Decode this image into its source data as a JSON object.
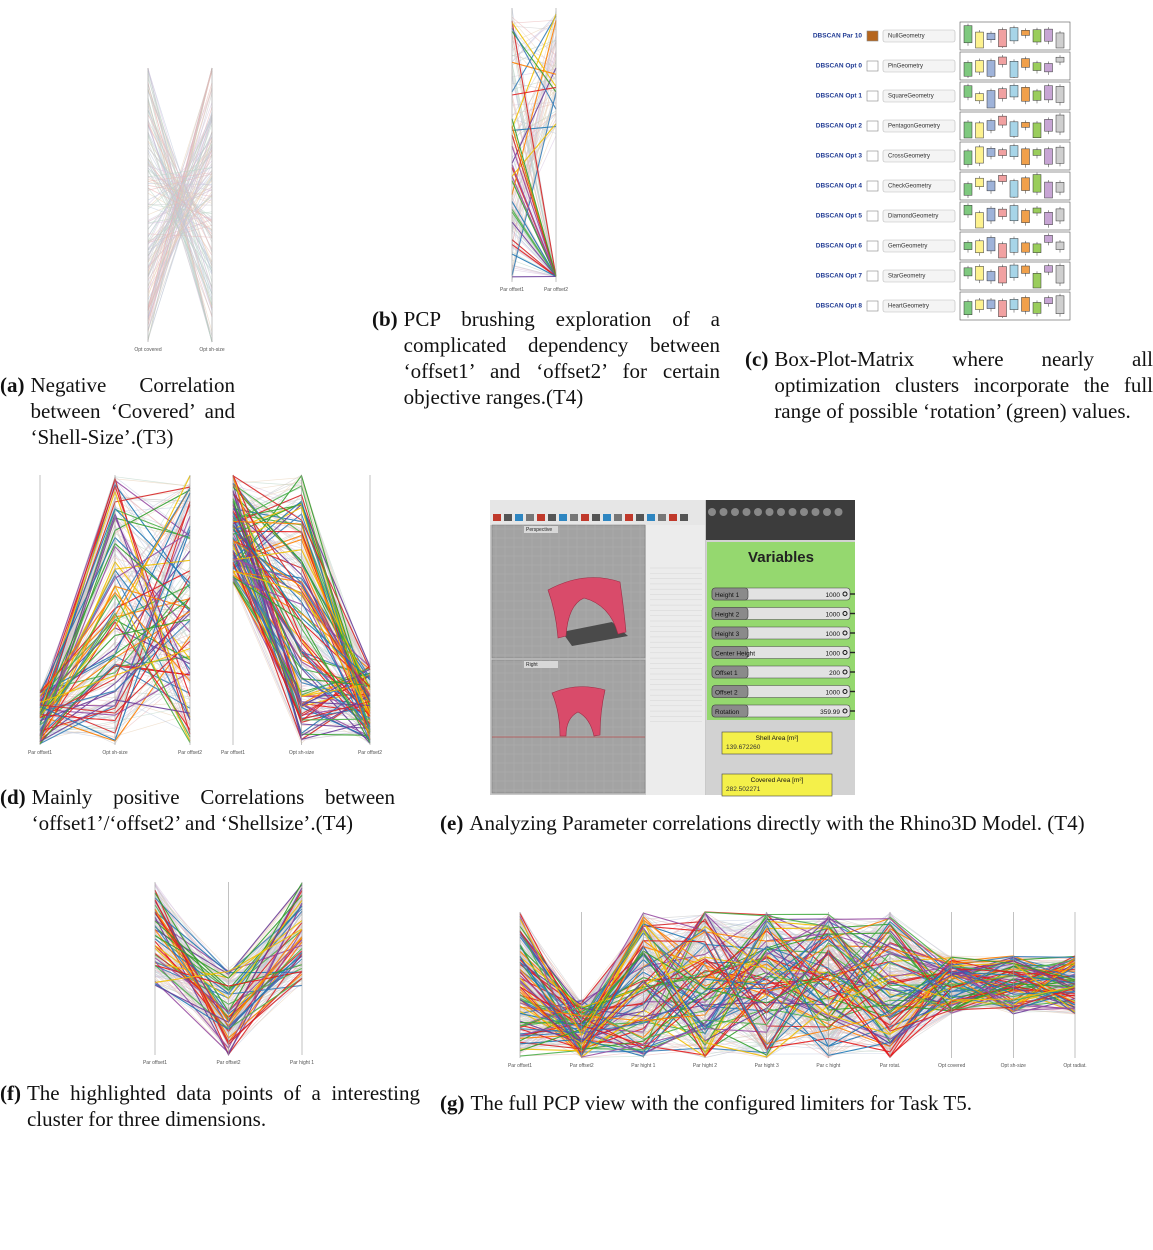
{
  "figures": [
    {
      "label": "(a)",
      "caption": "Negative Correlation between ‘Covered’ and ‘Shell-Size’.(T3)",
      "axes": [
        "Opt covered",
        "Opt sh-size"
      ]
    },
    {
      "label": "(b)",
      "caption": "PCP brushing exploration of a complicated dependency between ‘offset1’ and ‘offset2’ for certain objective ranges.(T4)",
      "axes": [
        "Par offset1",
        "Par offset2"
      ]
    },
    {
      "label": "(c)",
      "caption": "Box-Plot-Matrix where nearly all optimization clusters incorporate the full range of possible ‘rotation’ (green) values.",
      "rows": [
        {
          "name": "DBSCAN Par 10",
          "shape": "NullGeometry"
        },
        {
          "name": "DBSCAN Opt 0",
          "shape": "PinGeometry"
        },
        {
          "name": "DBSCAN Opt 1",
          "shape": "SquareGeometry"
        },
        {
          "name": "DBSCAN Opt 2",
          "shape": "PentagonGeometry"
        },
        {
          "name": "DBSCAN Opt 3",
          "shape": "CrossGeometry"
        },
        {
          "name": "DBSCAN Opt 4",
          "shape": "CheckGeometry"
        },
        {
          "name": "DBSCAN Opt 5",
          "shape": "DiamondGeometry"
        },
        {
          "name": "DBSCAN Opt 6",
          "shape": "GemGeometry"
        },
        {
          "name": "DBSCAN Opt 7",
          "shape": "StarGeometry"
        },
        {
          "name": "DBSCAN Opt 8",
          "shape": "HeartGeometry"
        }
      ]
    },
    {
      "label": "(d)",
      "caption": "Mainly positive Correlations between ‘offset1’/‘offset2’ and ‘Shellsize’.(T4)",
      "panels": [
        [
          "Par offset1",
          "Opt sh-size",
          "Par offset2"
        ],
        [
          "Par offset1",
          "Opt sh-size",
          "Par offset2"
        ]
      ]
    },
    {
      "label": "(e)",
      "caption": "Analyzing Parameter correlations directly with the Rhino3D Model. (T4)",
      "viewports": [
        "Perspective",
        "Right"
      ],
      "panel_title": "Variables",
      "sliders": [
        {
          "name": "Height 1",
          "value": "1000"
        },
        {
          "name": "Height 2",
          "value": "1000"
        },
        {
          "name": "Height 3",
          "value": "1000"
        },
        {
          "name": "Center Height",
          "value": "1000"
        },
        {
          "name": "Offset 1",
          "value": "200"
        },
        {
          "name": "Offset 2",
          "value": "1000"
        },
        {
          "name": "Rotation",
          "value": "359.99"
        }
      ],
      "outputs": [
        {
          "name": "Shell Area [m²]",
          "value": "139.672260"
        },
        {
          "name": "Covered Area [m²]",
          "value": "282.502271"
        }
      ]
    },
    {
      "label": "(f)",
      "caption": "The highlighted data points of a interesting cluster for three dimensions.",
      "axes": [
        "Par offset1",
        "Par offset2",
        "Par hight 1"
      ]
    },
    {
      "label": "(g)",
      "caption": "The full PCP view with the configured limiters for Task T5.",
      "axes": [
        "Par offset1",
        "Par offset2",
        "Par hight 1",
        "Par hight 2",
        "Par hight 3",
        "Par c hight",
        "Par rotat.",
        "Opt covered",
        "Opt sh-size",
        "Opt radiat."
      ]
    }
  ]
}
